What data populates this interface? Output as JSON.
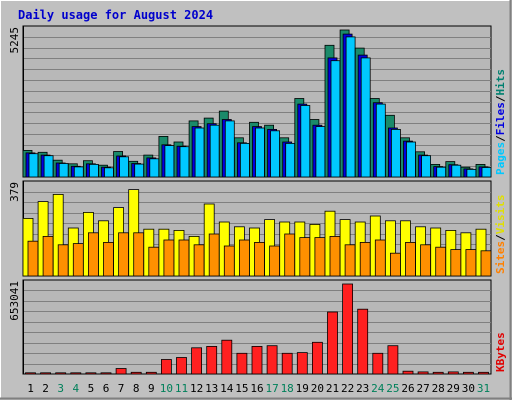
{
  "chart_data": {
    "type": "bar",
    "title": "Daily usage for August 2024",
    "categories": [
      "1",
      "2",
      "3",
      "4",
      "5",
      "6",
      "7",
      "8",
      "9",
      "10",
      "11",
      "12",
      "13",
      "14",
      "15",
      "16",
      "17",
      "18",
      "19",
      "20",
      "21",
      "22",
      "23",
      "24",
      "25",
      "26",
      "27",
      "28",
      "29",
      "30",
      "31"
    ],
    "weekend_days": [
      "3",
      "4",
      "10",
      "11",
      "17",
      "18",
      "24",
      "25",
      "31"
    ],
    "panels": [
      {
        "id": "hits-files-pages",
        "ymax_label": "5245",
        "ymax": 5245,
        "legend": [
          {
            "label": "Pages",
            "color": "#00c8ff"
          },
          {
            "label": "/",
            "color": "#000000"
          },
          {
            "label": "Files",
            "color": "#0000e0"
          },
          {
            "label": "/",
            "color": "#000000"
          },
          {
            "label": "Hits",
            "color": "#008070"
          }
        ],
        "series": [
          {
            "name": "Hits",
            "color": "#1a8a6a",
            "values": [
              950,
              880,
              600,
              470,
              580,
              420,
              910,
              560,
              780,
              1450,
              1250,
              2000,
              2100,
              2350,
              1400,
              1950,
              1850,
              1400,
              2800,
              2050,
              4700,
              5245,
              4600,
              2800,
              2200,
              1400,
              900,
              450,
              550,
              350,
              450
            ]
          },
          {
            "name": "Files",
            "color": "#0000e0",
            "values": [
              860,
              780,
              500,
              380,
              470,
              350,
              750,
              480,
              680,
              1150,
              1100,
              1800,
              1900,
              2050,
              1220,
              1800,
              1700,
              1250,
              2600,
              1850,
              4250,
              5100,
              4350,
              2650,
              1750,
              1280,
              780,
              370,
              440,
              290,
              360
            ]
          },
          {
            "name": "Pages",
            "color": "#00c8ff",
            "values": [
              830,
              760,
              480,
              360,
              450,
              330,
              720,
              460,
              650,
              1120,
              1080,
              1750,
              1850,
              2000,
              1200,
              1750,
              1650,
              1200,
              2550,
              1800,
              4150,
              5000,
              4250,
              2600,
              1700,
              1250,
              760,
              350,
              420,
              270,
              340
            ]
          }
        ]
      },
      {
        "id": "visits-sites",
        "ymax_label": "379",
        "ymax": 379,
        "legend": [
          {
            "label": "Sites",
            "color": "#ff8000"
          },
          {
            "label": "/",
            "color": "#000000"
          },
          {
            "label": "Visits",
            "color": "#e0e000"
          }
        ],
        "series": [
          {
            "name": "Visits",
            "color": "#ffff00",
            "values": [
              240,
              310,
              340,
              200,
              265,
              230,
              285,
              360,
              195,
              195,
              190,
              165,
              300,
              225,
              205,
              200,
              235,
              225,
              225,
              215,
              270,
              235,
              225,
              250,
              230,
              230,
              205,
              200,
              190,
              180,
              195
            ]
          },
          {
            "name": "Sites",
            "color": "#ff9000",
            "values": [
              145,
              165,
              130,
              135,
              180,
              140,
              180,
              180,
              120,
              150,
              150,
              130,
              175,
              125,
              150,
              140,
              125,
              175,
              160,
              160,
              165,
              130,
              140,
              150,
              95,
              140,
              130,
              120,
              110,
              110,
              105
            ]
          }
        ]
      },
      {
        "id": "kbytes",
        "ymax_label": "653041",
        "ymax": 653041,
        "legend": [
          {
            "label": "KBytes",
            "color": "#e00000"
          }
        ],
        "series": [
          {
            "name": "KBytes",
            "color": "#ff2020",
            "values": [
              9000,
              9000,
              9000,
              9000,
              9000,
              9000,
              40000,
              12000,
              12000,
              105000,
              120000,
              190000,
              200000,
              245000,
              150000,
              200000,
              205000,
              150000,
              155000,
              230000,
              450000,
              653041,
              470000,
              150000,
              205000,
              20000,
              15000,
              12000,
              15000,
              12000,
              12000
            ]
          }
        ]
      }
    ]
  }
}
